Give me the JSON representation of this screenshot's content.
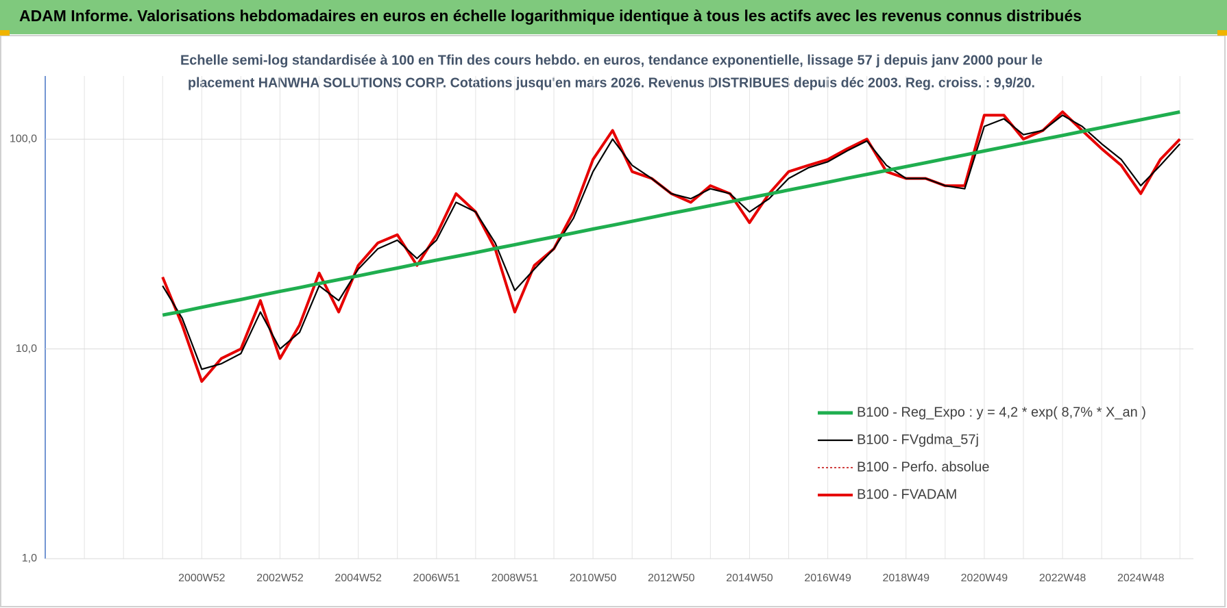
{
  "chart_data": {
    "type": "line",
    "title": "ADAM Informe. Valorisations hebdomadaires en euros en échelle logarithmique identique à tous les actifs avec les revenus connus distribués",
    "subtitle": [
      "Echelle semi-log standardisée à 100 en Tfin des cours hebdo. en euros, tendance exponentielle, lissage 57 j depuis janv 2000 pour le",
      "placement HANWHA SOLUTIONS CORP. Cotations jusqu'en mars 2026. Revenus DISTRIBUES depuis déc 2003. Reg. croiss. : 9,9/20."
    ],
    "categories": [
      null,
      null,
      null,
      null,
      null,
      null,
      null,
      null,
      "2000W52",
      null,
      null,
      null,
      "2002W52",
      null,
      null,
      null,
      "2004W52",
      null,
      null,
      null,
      "2006W51",
      null,
      null,
      null,
      "2008W51",
      null,
      null,
      null,
      "2010W50",
      null,
      null,
      null,
      "2012W50",
      null,
      null,
      null,
      "2014W50",
      null,
      null,
      null,
      "2016W49",
      null,
      null,
      null,
      "2018W49",
      null,
      null,
      null,
      "2020W49",
      null,
      null,
      null,
      "2022W48",
      null,
      null,
      null,
      "2024W48",
      null,
      null
    ],
    "log_scale": true,
    "ylim": [
      1,
      200
    ],
    "yticks": [
      {
        "value": 1,
        "label": "1,0"
      },
      {
        "value": 10,
        "label": "10,0"
      },
      {
        "value": 100,
        "label": "100,0"
      }
    ],
    "grid": true,
    "legend": "lower right",
    "series": [
      {
        "name": "B100 - Reg_Expo : y = 4,2 * exp( 8,7% *  X_an )",
        "color": "#1fae4f",
        "style": "solid",
        "values": [
          null,
          null,
          null,
          null,
          null,
          null,
          14.5,
          15.1,
          15.8,
          16.5,
          17.2,
          18.0,
          18.8,
          19.6,
          20.5,
          21.4,
          22.3,
          23.3,
          24.3,
          25.4,
          26.5,
          27.6,
          28.8,
          30.1,
          31.4,
          32.8,
          34.2,
          35.7,
          37.3,
          38.9,
          40.6,
          42.4,
          44.3,
          46.2,
          48.2,
          50.3,
          52.5,
          54.8,
          57.2,
          59.7,
          62.3,
          65.1,
          67.9,
          70.9,
          74.0,
          77.2,
          80.6,
          84.1,
          87.8,
          91.7,
          95.7,
          99.9,
          104.2,
          108.8,
          113.6,
          118.5,
          123.7,
          129.1,
          134.8
        ]
      },
      {
        "name": "B100 - FVgdma_57j",
        "color": "#000000",
        "style": "solid",
        "values": [
          null,
          null,
          null,
          null,
          null,
          null,
          20,
          14,
          8,
          8.5,
          9.5,
          15,
          10,
          12,
          20,
          17,
          24,
          30,
          33,
          27,
          33,
          50,
          45,
          32,
          19,
          24,
          30,
          42,
          70,
          100,
          75,
          65,
          55,
          52,
          58,
          55,
          45,
          52,
          65,
          73,
          78,
          88,
          98,
          75,
          65,
          65,
          60,
          58,
          115,
          125,
          105,
          110,
          130,
          115,
          95,
          80,
          60,
          75,
          95
        ]
      },
      {
        "name": "B100 - Perfo. absolue",
        "color": "#c00000",
        "style": "dotted",
        "values": [
          null,
          null,
          null,
          null,
          null,
          null,
          22,
          13,
          7,
          9,
          10,
          17,
          9,
          13,
          23,
          15,
          25,
          32,
          35,
          25,
          35,
          55,
          45,
          30,
          15,
          25,
          30,
          45,
          80,
          110,
          70,
          65,
          55,
          50,
          60,
          55,
          40,
          55,
          70,
          75,
          80,
          90,
          100,
          70,
          65,
          65,
          60,
          60,
          130,
          130,
          100,
          110,
          135,
          110,
          90,
          75,
          55,
          80,
          100
        ]
      },
      {
        "name": "B100 - FVADAM",
        "color": "#e60000",
        "style": "solid",
        "values": [
          null,
          null,
          null,
          null,
          null,
          null,
          22,
          13,
          7,
          9,
          10,
          17,
          9,
          13,
          23,
          15,
          25,
          32,
          35,
          25,
          35,
          55,
          45,
          30,
          15,
          25,
          30,
          45,
          80,
          110,
          70,
          65,
          55,
          50,
          60,
          55,
          40,
          55,
          70,
          75,
          80,
          90,
          100,
          70,
          65,
          65,
          60,
          60,
          130,
          130,
          100,
          110,
          135,
          110,
          90,
          75,
          55,
          80,
          100
        ]
      }
    ]
  }
}
